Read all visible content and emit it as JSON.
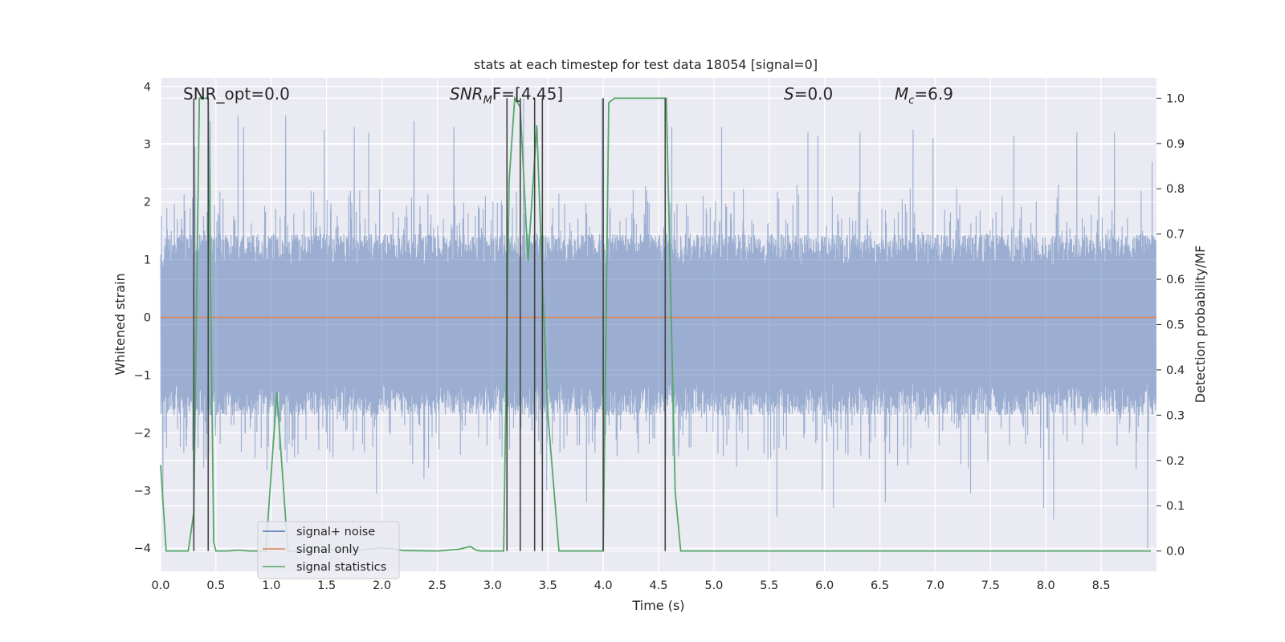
{
  "chart_data": {
    "type": "line",
    "title": "stats at each timestep for test data 18054 [signal=0]",
    "xlabel": "Time (s)",
    "ylabel": "Whitened strain",
    "y2label": "Detection probability/MF",
    "xlim": [
      0.0,
      9.0
    ],
    "ylim": [
      -4.4,
      4.15
    ],
    "y2lim": [
      -0.045,
      1.045
    ],
    "xticks": [
      0.0,
      0.5,
      1.0,
      1.5,
      2.0,
      2.5,
      3.0,
      3.5,
      4.0,
      4.5,
      5.0,
      5.5,
      6.0,
      6.5,
      7.0,
      7.5,
      8.0,
      8.5
    ],
    "xtick_labels": [
      "0.0",
      "0.5",
      "1.0",
      "1.5",
      "2.0",
      "2.5",
      "3.0",
      "3.5",
      "4.0",
      "4.5",
      "5.0",
      "5.5",
      "6.0",
      "6.5",
      "7.0",
      "7.5",
      "8.0",
      "8.5"
    ],
    "yticks": [
      4,
      3,
      2,
      1,
      0,
      -1,
      -2,
      -3,
      -4
    ],
    "ytick_labels": [
      "4",
      "3",
      "2",
      "1",
      "0",
      "−1",
      "−2",
      "−3",
      "−4"
    ],
    "y2ticks": [
      1.0,
      0.9,
      0.8,
      0.7,
      0.6,
      0.5,
      0.4,
      0.3,
      0.2,
      0.1,
      0.0
    ],
    "y2tick_labels": [
      "1.0",
      "0.9",
      "0.8",
      "0.7",
      "0.6",
      "0.5",
      "0.4",
      "0.3",
      "0.2",
      "0.1",
      "0.0"
    ],
    "grid": true,
    "legend_position": "lower-left",
    "legend": [
      {
        "label": "signal+ noise",
        "color": "#4c72b0"
      },
      {
        "label": "signal only",
        "color": "#dd8452"
      },
      {
        "label": "signal statistics",
        "color": "#55a868"
      }
    ],
    "annotations": {
      "snr_opt": "SNR_opt=0.0",
      "snr_mf_prefix": "SNR",
      "snr_mf_sub": "M",
      "snr_mf_suffix": "F=[4.45]",
      "s_symbol": "S",
      "s_value": "=0.0",
      "mc_symbol": "M",
      "mc_sub": "c",
      "mc_value": "=6.9"
    },
    "series": [
      {
        "name": "signal+ noise",
        "color": "#4c72b0",
        "axis": "left",
        "style": "noise",
        "sample_count": 4500,
        "typical_range": [
          -1.7,
          1.45
        ],
        "peaks": [
          {
            "t": 0.43,
            "v": 3.9
          },
          {
            "t": 0.45,
            "v": 3.4
          },
          {
            "t": 0.39,
            "v": -2.6
          },
          {
            "t": 0.31,
            "v": 2.95
          },
          {
            "t": 0.7,
            "v": 3.5
          },
          {
            "t": 0.75,
            "v": 3.3
          },
          {
            "t": 1.13,
            "v": 3.5
          },
          {
            "t": 1.48,
            "v": 3.25
          },
          {
            "t": 1.75,
            "v": 3.3
          },
          {
            "t": 1.88,
            "v": 3.2
          },
          {
            "t": 2.29,
            "v": 3.4
          },
          {
            "t": 2.65,
            "v": 3.3
          },
          {
            "t": 3.28,
            "v": 3.8
          },
          {
            "t": 3.38,
            "v": 3.8
          },
          {
            "t": 3.99,
            "v": 3.8
          },
          {
            "t": 4.62,
            "v": 3.3
          },
          {
            "t": 5.07,
            "v": 3.3
          },
          {
            "t": 5.57,
            "v": 3.1
          },
          {
            "t": 5.85,
            "v": 3.2
          },
          {
            "t": 5.94,
            "v": 3.15
          },
          {
            "t": 6.32,
            "v": 3.2
          },
          {
            "t": 6.8,
            "v": 3.25
          },
          {
            "t": 6.98,
            "v": 3.1
          },
          {
            "t": 7.71,
            "v": 3.15
          },
          {
            "t": 8.28,
            "v": 3.2
          },
          {
            "t": 8.62,
            "v": 3.2
          },
          {
            "t": 8.96,
            "v": 2.7
          },
          {
            "t": 0.02,
            "v": -3.2
          },
          {
            "t": 1.95,
            "v": -3.05
          },
          {
            "t": 2.38,
            "v": -2.8
          },
          {
            "t": 3.49,
            "v": -3.0
          },
          {
            "t": 3.85,
            "v": -3.2
          },
          {
            "t": 5.57,
            "v": -3.45
          },
          {
            "t": 5.98,
            "v": -3.0
          },
          {
            "t": 6.08,
            "v": -3.3
          },
          {
            "t": 6.55,
            "v": -3.2
          },
          {
            "t": 7.32,
            "v": -3.05
          },
          {
            "t": 7.98,
            "v": -3.3
          },
          {
            "t": 8.07,
            "v": -3.5
          },
          {
            "t": 8.92,
            "v": -4.0
          }
        ]
      },
      {
        "name": "signal only",
        "color": "#dd8452",
        "axis": "left",
        "x": [
          0.0,
          9.0
        ],
        "y": [
          0.0,
          0.0
        ]
      },
      {
        "name": "signal statistics",
        "color": "#55a868",
        "axis": "right",
        "x": [
          0.0,
          0.05,
          0.25,
          0.3,
          0.35,
          0.4,
          0.43,
          0.48,
          0.5,
          0.6,
          0.7,
          0.8,
          0.95,
          1.05,
          1.15,
          1.3,
          1.5,
          1.8,
          2.0,
          2.2,
          2.5,
          2.7,
          2.8,
          2.85,
          2.9,
          3.1,
          3.15,
          3.2,
          3.25,
          3.32,
          3.4,
          3.45,
          3.5,
          3.6,
          3.7,
          3.8,
          4.0,
          4.05,
          4.1,
          4.2,
          4.3,
          4.4,
          4.5,
          4.57,
          4.65,
          4.7,
          5.0,
          6.0,
          7.0,
          8.0,
          8.95
        ],
        "y": [
          0.19,
          0.0,
          0.0,
          0.085,
          1.0,
          1.0,
          1.0,
          0.02,
          0.0,
          0.0,
          0.002,
          0.0,
          0.0,
          0.35,
          0.0,
          0.0,
          0.002,
          0.002,
          0.007,
          0.001,
          0.0,
          0.004,
          0.01,
          0.002,
          0.0,
          0.0,
          0.82,
          1.0,
          0.98,
          0.64,
          0.94,
          0.6,
          0.3,
          0.0,
          0.0,
          0.0,
          0.0,
          0.99,
          1.0,
          1.0,
          1.0,
          1.0,
          1.0,
          1.0,
          0.13,
          0.0,
          0.0,
          0.0,
          0.0,
          0.0,
          0.0
        ]
      }
    ],
    "vlines": {
      "color": "#444444",
      "x": [
        0.3,
        0.43,
        3.13,
        3.25,
        3.38,
        3.45,
        4.0,
        4.56
      ],
      "y2_top": 1.0
    }
  }
}
